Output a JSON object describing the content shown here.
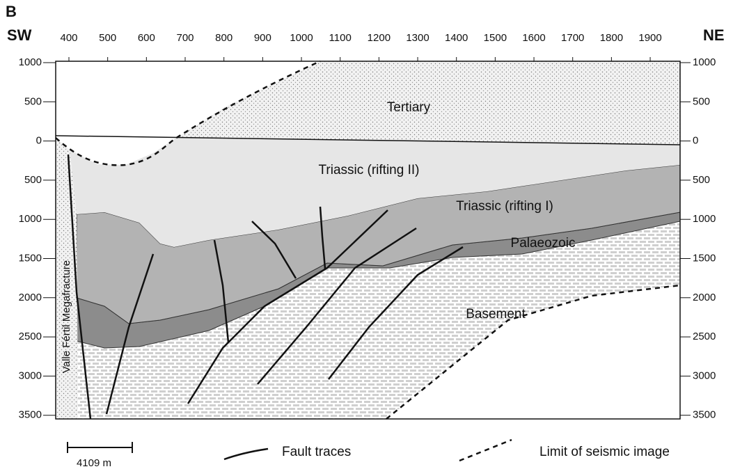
{
  "panel": "B",
  "left_end": "SW",
  "right_end": "NE",
  "top_axis": [
    400,
    500,
    600,
    700,
    800,
    900,
    1000,
    1100,
    1200,
    1300,
    1400,
    1500,
    1600,
    1700,
    1800,
    1900
  ],
  "left_axis": [
    1000,
    500,
    0,
    500,
    1000,
    1500,
    2000,
    2500,
    3000,
    3500
  ],
  "right_axis": [
    1000,
    500,
    0,
    500,
    1000,
    1500,
    2000,
    2500,
    3000,
    3500
  ],
  "layers": [
    "Tertiary",
    "Triassic (rifting II)",
    "Triassic (rifting I)",
    "Palaeozoic",
    "Basement"
  ],
  "fracture_label": "Valle Fértil Megafracture",
  "scale_bar": "4109 m",
  "legend": [
    "Fault traces",
    "Limit of seismic image"
  ]
}
